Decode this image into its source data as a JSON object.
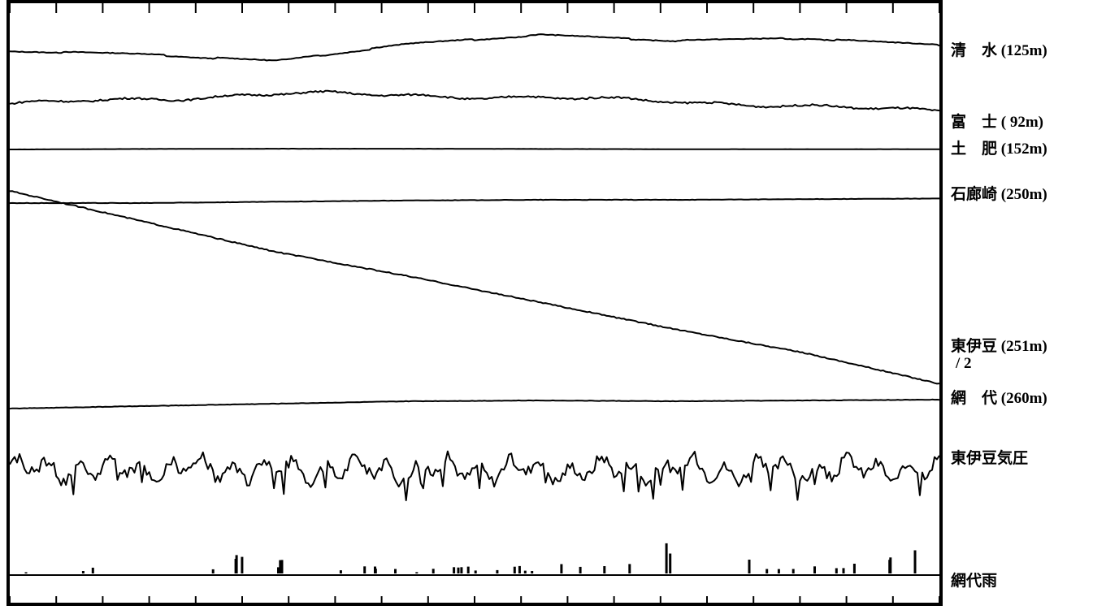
{
  "chart_data": {
    "type": "line",
    "title": "",
    "xlabel": "",
    "ylabel": "",
    "grid": false,
    "series": [
      {
        "name": "清　水 (125m)",
        "kind": "step_drift",
        "values": [
          0.0,
          -0.3,
          -0.9,
          0.6,
          1.4,
          0.9,
          1.1,
          0.5
        ]
      },
      {
        "name": "富　士 ( 92m)",
        "kind": "wavy_drift",
        "values": [
          0.0,
          0.4,
          0.9,
          0.8,
          0.5,
          0.3,
          -0.3,
          -0.5
        ]
      },
      {
        "name": "土　肥 (152m)",
        "kind": "flat",
        "values": [
          0.0,
          0.2,
          0.3,
          0.3,
          0.2,
          0.1,
          0.1,
          0.1
        ]
      },
      {
        "name": "石廊崎 (250m)",
        "kind": "flat",
        "values": [
          0.0,
          0.0,
          0.2,
          0.4,
          0.5,
          0.5,
          0.6,
          0.7
        ]
      },
      {
        "name": "東伊豆 (251m)",
        "sub": "/ 2",
        "kind": "trend",
        "values": [
          5.0,
          3.5,
          2.0,
          0.8,
          -0.5,
          -1.8,
          -3.0,
          -4.5
        ]
      },
      {
        "name": "網　代 (260m)",
        "kind": "flat",
        "values": [
          0.0,
          0.3,
          0.6,
          0.9,
          1.0,
          0.9,
          1.0,
          1.1
        ]
      },
      {
        "name": "東伊豆気圧",
        "kind": "oscillation",
        "values": [
          0.0,
          0.6,
          -0.8,
          0.5,
          -1.0,
          0.7,
          -0.6,
          0.3
        ]
      },
      {
        "name": "網代雨",
        "kind": "bars",
        "values": [
          0,
          1.5,
          2.2,
          0.5,
          1.0,
          3.8,
          0.8,
          2.5
        ]
      }
    ],
    "x_ticks": 21,
    "legend": "right"
  }
}
